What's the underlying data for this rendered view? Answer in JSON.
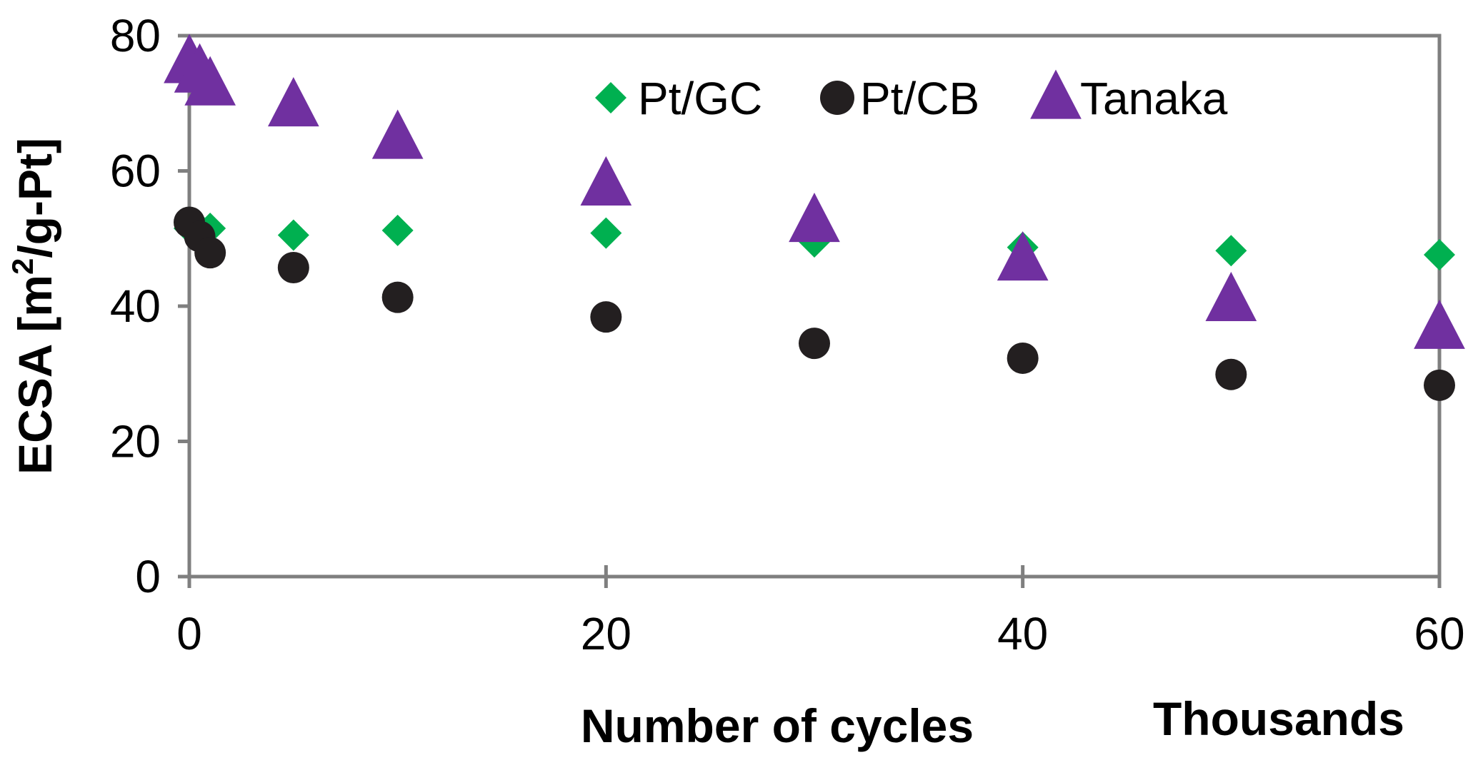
{
  "chart_data": {
    "type": "scatter",
    "title": "",
    "xlabel": "Number of cycles",
    "x_multiplier_label": "Thousands",
    "ylabel_prefix": "ECSA [m",
    "ylabel_sup": "2",
    "ylabel_suffix": "/g-Pt]",
    "xlim": [
      0,
      60
    ],
    "ylim": [
      0,
      80
    ],
    "xticks": [
      0,
      20,
      40,
      60
    ],
    "yticks": [
      0,
      20,
      40,
      60,
      80
    ],
    "grid": false,
    "legend_position": "top-right",
    "series": [
      {
        "name": "Pt/GC",
        "marker": "diamond",
        "color": "#00b050",
        "x": [
          0,
          0.5,
          1,
          5,
          10,
          20,
          30,
          40,
          50,
          60
        ],
        "y": [
          51.5,
          51.5,
          51.5,
          50.5,
          51.2,
          50.8,
          49.5,
          48.7,
          48.2,
          47.6
        ]
      },
      {
        "name": "Pt/CB",
        "marker": "circle",
        "color": "#231f20",
        "x": [
          0,
          0.5,
          1,
          5,
          10,
          20,
          30,
          40,
          50,
          60
        ],
        "y": [
          52.4,
          50.3,
          47.9,
          45.7,
          41.3,
          38.4,
          34.5,
          32.3,
          29.9,
          28.3
        ]
      },
      {
        "name": "Tanaka",
        "marker": "triangle",
        "color": "#7030a0",
        "x": [
          0,
          0.5,
          1,
          5,
          10,
          20,
          30,
          40,
          50,
          60
        ],
        "y": [
          75.9,
          74.5,
          72.6,
          69.5,
          64.7,
          57.8,
          52.4,
          46.7,
          40.7,
          36.6
        ]
      }
    ]
  }
}
